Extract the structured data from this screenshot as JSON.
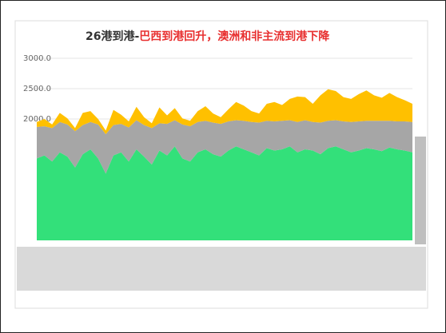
{
  "chart_data": {
    "type": "stacked-area",
    "title_prefix": "26港到港-",
    "title": "巴西到港回升，澳洲和非主流到港下降",
    "ylim": [
      0,
      3000
    ],
    "yticks": [
      {
        "value": 3000,
        "label": "3000.0"
      },
      {
        "value": 2500,
        "label": "2500.0"
      },
      {
        "value": 2000,
        "label": "2000.0"
      }
    ],
    "grid": true,
    "series": [
      {
        "color": "#33e07a",
        "values": [
          1350,
          1400,
          1300,
          1450,
          1380,
          1200,
          1420,
          1500,
          1350,
          1100,
          1400,
          1450,
          1300,
          1500,
          1380,
          1250,
          1480,
          1400,
          1550,
          1350,
          1300,
          1450,
          1500,
          1420,
          1380,
          1480,
          1550,
          1500,
          1450,
          1400,
          1520,
          1480,
          1500,
          1550,
          1450,
          1500,
          1480,
          1420,
          1520,
          1550,
          1500,
          1450,
          1480,
          1520,
          1500,
          1470,
          1530,
          1500,
          1480,
          1450
        ]
      },
      {
        "color": "#a6a6a6",
        "values": [
          520,
          480,
          550,
          500,
          530,
          600,
          480,
          450,
          560,
          650,
          500,
          470,
          560,
          480,
          520,
          600,
          450,
          520,
          430,
          560,
          580,
          500,
          470,
          520,
          540,
          480,
          430,
          470,
          500,
          540,
          450,
          480,
          470,
          430,
          500,
          480,
          470,
          520,
          450,
          430,
          460,
          500,
          480,
          450,
          470,
          500,
          440,
          460,
          480,
          500
        ]
      },
      {
        "color": "#ffc000",
        "values": [
          80,
          120,
          60,
          150,
          100,
          50,
          200,
          180,
          90,
          60,
          250,
          150,
          100,
          220,
          130,
          80,
          260,
          140,
          200,
          100,
          90,
          180,
          240,
          150,
          110,
          200,
          300,
          250,
          180,
          150,
          280,
          320,
          260,
          350,
          420,
          380,
          300,
          450,
          520,
          480,
          400,
          380,
          450,
          500,
          420,
          380,
          460,
          400,
          350,
          300
        ]
      }
    ]
  }
}
